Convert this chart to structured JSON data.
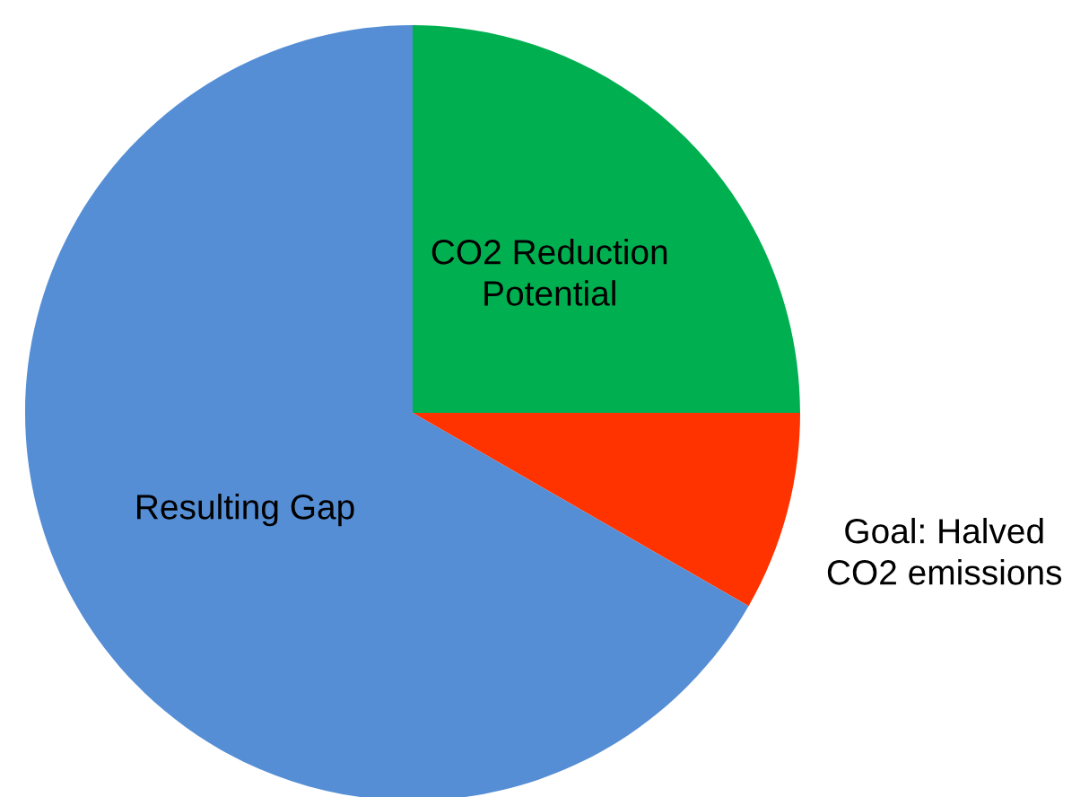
{
  "chart_data": {
    "type": "pie",
    "categories": [
      "CO2 Reduction\nPotential",
      "Goal: Halved\nCO2 emissions",
      "Resulting Gap"
    ],
    "values": [
      25,
      8.3,
      66.7
    ],
    "colors": [
      "#00b050",
      "#ff3300",
      "#558ed5"
    ]
  }
}
